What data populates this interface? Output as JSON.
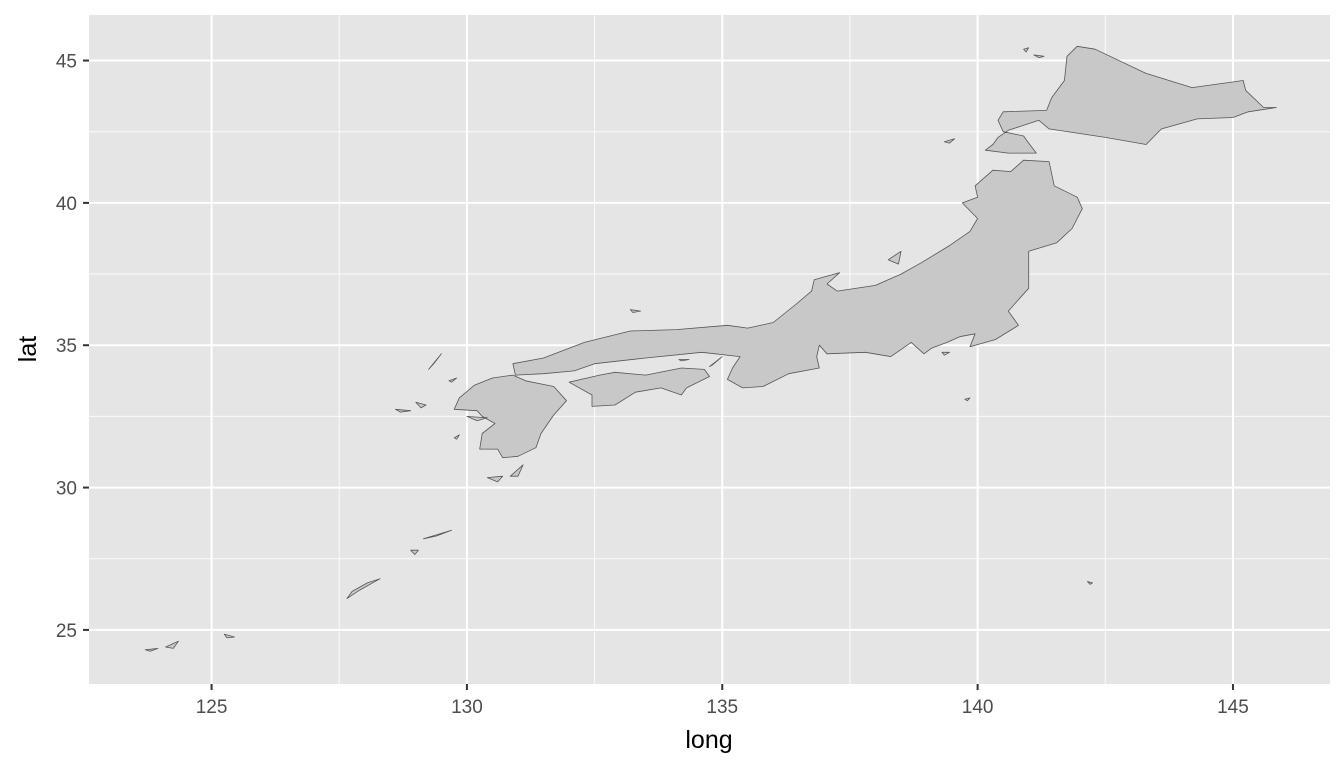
{
  "chart_data": {
    "type": "map",
    "xlabel": "long",
    "ylabel": "lat",
    "xlim": [
      122.6,
      146.9
    ],
    "ylim": [
      23.1,
      46.6
    ],
    "x_ticks": [
      125,
      130,
      135,
      140,
      145
    ],
    "y_ticks": [
      25,
      30,
      35,
      40,
      45
    ],
    "x_tick_labels": [
      "125",
      "130",
      "135",
      "140",
      "145"
    ],
    "y_tick_labels": [
      "25",
      "30",
      "35",
      "40",
      "45"
    ],
    "grid": true,
    "panel_color": "#e5e5e5",
    "land_fill": "#c8c8c8",
    "land_stroke": "#555555",
    "regions": [
      {
        "name": "Hokkaido",
        "coords": [
          [
            141.4,
            42.6
          ],
          [
            141.2,
            42.9
          ],
          [
            140.6,
            42.55
          ],
          [
            140.4,
            42.3
          ],
          [
            140.3,
            42.05
          ],
          [
            140.15,
            41.85
          ],
          [
            140.6,
            41.75
          ],
          [
            141.15,
            41.75
          ],
          [
            141.0,
            42.1
          ],
          [
            140.9,
            42.35
          ],
          [
            140.5,
            42.5
          ],
          [
            140.4,
            42.9
          ],
          [
            140.5,
            43.2
          ],
          [
            141.35,
            43.25
          ],
          [
            141.45,
            43.7
          ],
          [
            141.7,
            44.3
          ],
          [
            141.75,
            45.15
          ],
          [
            141.95,
            45.5
          ],
          [
            142.3,
            45.4
          ],
          [
            143.3,
            44.55
          ],
          [
            144.2,
            44.05
          ],
          [
            145.2,
            44.3
          ],
          [
            145.25,
            43.95
          ],
          [
            145.6,
            43.35
          ],
          [
            145.85,
            43.35
          ],
          [
            145.3,
            43.2
          ],
          [
            145.0,
            43.0
          ],
          [
            144.3,
            42.95
          ],
          [
            143.6,
            42.6
          ],
          [
            143.3,
            42.05
          ],
          [
            142.5,
            42.3
          ],
          [
            141.4,
            42.6
          ]
        ]
      },
      {
        "name": "Honshu",
        "coords": [
          [
            140.9,
            41.5
          ],
          [
            141.4,
            41.45
          ],
          [
            141.5,
            40.6
          ],
          [
            141.95,
            40.2
          ],
          [
            142.05,
            39.8
          ],
          [
            141.85,
            39.1
          ],
          [
            141.55,
            38.6
          ],
          [
            141.0,
            38.3
          ],
          [
            141.0,
            37.0
          ],
          [
            140.85,
            36.7
          ],
          [
            140.6,
            36.2
          ],
          [
            140.8,
            35.7
          ],
          [
            140.35,
            35.2
          ],
          [
            139.85,
            34.95
          ],
          [
            139.95,
            35.4
          ],
          [
            139.65,
            35.3
          ],
          [
            139.4,
            35.1
          ],
          [
            139.1,
            34.9
          ],
          [
            138.95,
            34.7
          ],
          [
            138.7,
            35.1
          ],
          [
            138.3,
            34.6
          ],
          [
            137.8,
            34.75
          ],
          [
            137.05,
            34.7
          ],
          [
            136.9,
            35.0
          ],
          [
            136.85,
            34.6
          ],
          [
            136.9,
            34.2
          ],
          [
            136.3,
            34.0
          ],
          [
            135.8,
            33.55
          ],
          [
            135.4,
            33.5
          ],
          [
            135.1,
            33.8
          ],
          [
            135.2,
            34.2
          ],
          [
            135.35,
            34.6
          ],
          [
            134.6,
            34.75
          ],
          [
            133.5,
            34.55
          ],
          [
            132.5,
            34.35
          ],
          [
            132.1,
            34.1
          ],
          [
            131.5,
            34.0
          ],
          [
            130.95,
            33.95
          ],
          [
            130.9,
            34.35
          ],
          [
            131.5,
            34.55
          ],
          [
            132.3,
            35.1
          ],
          [
            133.2,
            35.5
          ],
          [
            134.1,
            35.55
          ],
          [
            135.1,
            35.7
          ],
          [
            135.5,
            35.6
          ],
          [
            136.0,
            35.8
          ],
          [
            136.45,
            36.45
          ],
          [
            136.75,
            36.9
          ],
          [
            136.8,
            37.3
          ],
          [
            137.3,
            37.55
          ],
          [
            137.05,
            37.15
          ],
          [
            137.25,
            36.9
          ],
          [
            138.0,
            37.1
          ],
          [
            138.5,
            37.5
          ],
          [
            138.9,
            37.9
          ],
          [
            139.45,
            38.5
          ],
          [
            139.85,
            39.0
          ],
          [
            140.0,
            39.45
          ],
          [
            139.7,
            40.0
          ],
          [
            140.0,
            40.2
          ],
          [
            139.95,
            40.6
          ],
          [
            140.3,
            41.15
          ],
          [
            140.65,
            41.1
          ],
          [
            140.9,
            41.5
          ]
        ]
      },
      {
        "name": "Shikoku",
        "coords": [
          [
            132.0,
            33.7
          ],
          [
            132.6,
            33.95
          ],
          [
            132.9,
            34.05
          ],
          [
            133.5,
            33.95
          ],
          [
            134.2,
            34.2
          ],
          [
            134.65,
            34.15
          ],
          [
            134.75,
            33.9
          ],
          [
            134.3,
            33.5
          ],
          [
            134.2,
            33.25
          ],
          [
            133.8,
            33.5
          ],
          [
            133.3,
            33.35
          ],
          [
            132.9,
            32.9
          ],
          [
            132.45,
            32.85
          ],
          [
            132.45,
            33.25
          ],
          [
            132.0,
            33.7
          ]
        ]
      },
      {
        "name": "Kyushu",
        "coords": [
          [
            130.9,
            33.95
          ],
          [
            131.15,
            33.75
          ],
          [
            131.7,
            33.55
          ],
          [
            131.95,
            33.05
          ],
          [
            131.7,
            32.55
          ],
          [
            131.45,
            31.9
          ],
          [
            131.35,
            31.4
          ],
          [
            131.0,
            31.1
          ],
          [
            130.7,
            31.05
          ],
          [
            130.6,
            31.35
          ],
          [
            130.25,
            31.35
          ],
          [
            130.3,
            31.9
          ],
          [
            130.55,
            32.25
          ],
          [
            130.3,
            32.5
          ],
          [
            130.2,
            32.7
          ],
          [
            129.75,
            32.75
          ],
          [
            129.85,
            33.15
          ],
          [
            130.15,
            33.6
          ],
          [
            130.5,
            33.85
          ],
          [
            130.9,
            33.95
          ]
        ]
      },
      {
        "name": "Sado",
        "coords": [
          [
            138.25,
            38.0
          ],
          [
            138.5,
            38.3
          ],
          [
            138.45,
            37.85
          ],
          [
            138.25,
            38.0
          ]
        ]
      },
      {
        "name": "Okinawa",
        "coords": [
          [
            127.65,
            26.1
          ],
          [
            127.9,
            26.4
          ],
          [
            128.3,
            26.8
          ],
          [
            128.05,
            26.65
          ],
          [
            127.75,
            26.35
          ],
          [
            127.65,
            26.1
          ]
        ]
      },
      {
        "name": "Amami-Oshima",
        "coords": [
          [
            129.15,
            28.2
          ],
          [
            129.7,
            28.5
          ],
          [
            129.4,
            28.3
          ],
          [
            129.15,
            28.2
          ]
        ]
      },
      {
        "name": "Tokunoshima",
        "coords": [
          [
            128.9,
            27.8
          ],
          [
            129.05,
            27.8
          ],
          [
            128.98,
            27.65
          ],
          [
            128.9,
            27.8
          ]
        ]
      },
      {
        "name": "Yakushima",
        "coords": [
          [
            130.4,
            30.35
          ],
          [
            130.7,
            30.4
          ],
          [
            130.6,
            30.2
          ],
          [
            130.4,
            30.35
          ]
        ]
      },
      {
        "name": "Tanegashima",
        "coords": [
          [
            130.85,
            30.4
          ],
          [
            131.1,
            30.8
          ],
          [
            131.0,
            30.4
          ],
          [
            130.85,
            30.4
          ]
        ]
      },
      {
        "name": "Tsushima",
        "coords": [
          [
            129.25,
            34.15
          ],
          [
            129.5,
            34.7
          ],
          [
            129.35,
            34.35
          ],
          [
            129.25,
            34.15
          ]
        ]
      },
      {
        "name": "Iki",
        "coords": [
          [
            129.65,
            33.75
          ],
          [
            129.8,
            33.85
          ],
          [
            129.7,
            33.7
          ],
          [
            129.65,
            33.75
          ]
        ]
      },
      {
        "name": "Goto",
        "coords": [
          [
            128.6,
            32.75
          ],
          [
            128.9,
            32.7
          ],
          [
            128.7,
            32.65
          ],
          [
            128.6,
            32.75
          ]
        ]
      },
      {
        "name": "Goto-north",
        "coords": [
          [
            129.0,
            33.0
          ],
          [
            129.2,
            32.9
          ],
          [
            129.1,
            32.8
          ],
          [
            129.0,
            33.0
          ]
        ]
      },
      {
        "name": "Amakusa",
        "coords": [
          [
            130.0,
            32.5
          ],
          [
            130.4,
            32.45
          ],
          [
            130.2,
            32.35
          ],
          [
            130.0,
            32.5
          ]
        ]
      },
      {
        "name": "Koshiki",
        "coords": [
          [
            129.75,
            31.75
          ],
          [
            129.85,
            31.85
          ],
          [
            129.8,
            31.7
          ],
          [
            129.75,
            31.75
          ]
        ]
      },
      {
        "name": "Awaji",
        "coords": [
          [
            134.75,
            34.25
          ],
          [
            135.0,
            34.6
          ],
          [
            134.8,
            34.3
          ],
          [
            134.75,
            34.25
          ]
        ]
      },
      {
        "name": "Shodoshima",
        "coords": [
          [
            134.15,
            34.5
          ],
          [
            134.35,
            34.5
          ],
          [
            134.2,
            34.45
          ],
          [
            134.15,
            34.5
          ]
        ]
      },
      {
        "name": "Oki",
        "coords": [
          [
            133.2,
            36.25
          ],
          [
            133.4,
            36.2
          ],
          [
            133.25,
            36.15
          ],
          [
            133.2,
            36.25
          ]
        ]
      },
      {
        "name": "Okushiri",
        "coords": [
          [
            139.35,
            42.15
          ],
          [
            139.55,
            42.25
          ],
          [
            139.45,
            42.1
          ],
          [
            139.35,
            42.15
          ]
        ]
      },
      {
        "name": "Rishiri",
        "coords": [
          [
            141.1,
            45.2
          ],
          [
            141.3,
            45.15
          ],
          [
            141.2,
            45.1
          ],
          [
            141.1,
            45.2
          ]
        ]
      },
      {
        "name": "Rebun",
        "coords": [
          [
            140.9,
            45.4
          ],
          [
            141.0,
            45.45
          ],
          [
            140.95,
            45.3
          ],
          [
            140.9,
            45.4
          ]
        ]
      },
      {
        "name": "Izu-Oshima",
        "coords": [
          [
            139.3,
            34.75
          ],
          [
            139.45,
            34.75
          ],
          [
            139.35,
            34.65
          ],
          [
            139.3,
            34.75
          ]
        ]
      },
      {
        "name": "Hachijojima",
        "coords": [
          [
            139.75,
            33.1
          ],
          [
            139.85,
            33.15
          ],
          [
            139.8,
            33.05
          ],
          [
            139.75,
            33.1
          ]
        ]
      },
      {
        "name": "Chichijima",
        "coords": [
          [
            142.15,
            26.7
          ],
          [
            142.25,
            26.65
          ],
          [
            142.2,
            26.6
          ],
          [
            142.15,
            26.7
          ]
        ]
      },
      {
        "name": "Miyakojima",
        "coords": [
          [
            125.25,
            24.85
          ],
          [
            125.45,
            24.75
          ],
          [
            125.3,
            24.72
          ],
          [
            125.25,
            24.85
          ]
        ]
      },
      {
        "name": "Ishigaki",
        "coords": [
          [
            124.1,
            24.4
          ],
          [
            124.35,
            24.6
          ],
          [
            124.25,
            24.35
          ],
          [
            124.1,
            24.4
          ]
        ]
      },
      {
        "name": "Iriomote",
        "coords": [
          [
            123.7,
            24.3
          ],
          [
            123.95,
            24.35
          ],
          [
            123.8,
            24.25
          ],
          [
            123.7,
            24.3
          ]
        ]
      }
    ]
  }
}
